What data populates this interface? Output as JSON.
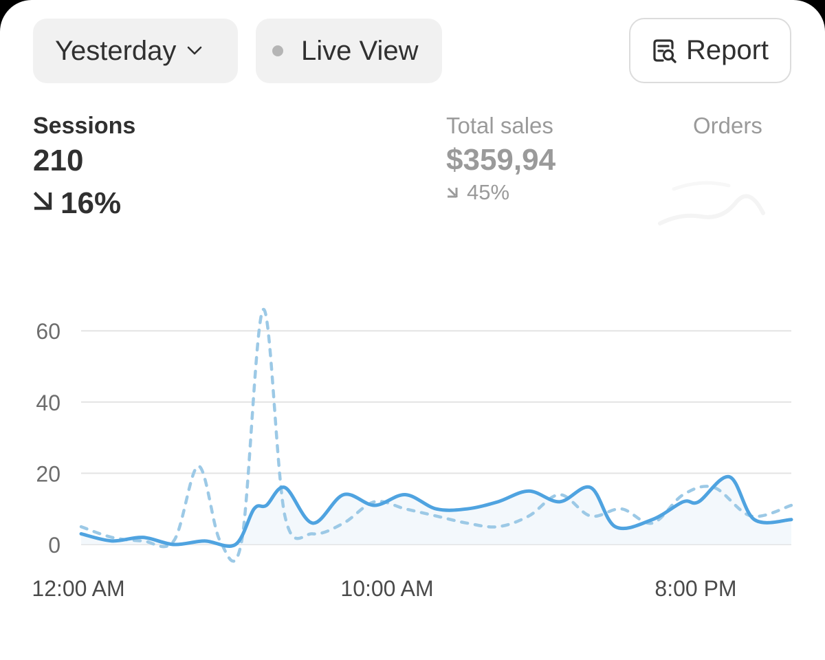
{
  "controls": {
    "date_range": "Yesterday",
    "live_view": "Live View",
    "report": "Report"
  },
  "metrics": {
    "sessions": {
      "label": "Sessions",
      "value": "210",
      "change": "16%"
    },
    "total_sales": {
      "label": "Total sales",
      "value": "$359,94",
      "change": "45%"
    },
    "orders": {
      "label": "Orders"
    }
  },
  "colors": {
    "current_series": "#4fa3e0",
    "comparison_series": "#9cc9e6",
    "gridline": "#e3e3e3"
  },
  "icons": [
    "chevron-down-icon",
    "live-dot-icon",
    "report-search-icon",
    "arrow-down-right-icon"
  ],
  "chart_data": {
    "type": "line",
    "x_tick_labels": [
      "12:00 AM",
      "10:00 AM",
      "8:00 PM"
    ],
    "y_tick_labels": [
      "0",
      "20",
      "40",
      "60"
    ],
    "ylim": [
      0,
      68
    ],
    "grid": true,
    "legend": "none",
    "series": [
      {
        "style": "solid",
        "points": [
          [
            0,
            3
          ],
          [
            1,
            1
          ],
          [
            2,
            2
          ],
          [
            3,
            0
          ],
          [
            4,
            1
          ],
          [
            5,
            0
          ],
          [
            5.6,
            10
          ],
          [
            6,
            11
          ],
          [
            6.6,
            16
          ],
          [
            7.5,
            6
          ],
          [
            8.5,
            14
          ],
          [
            9.5,
            11
          ],
          [
            10.5,
            14
          ],
          [
            11.5,
            10
          ],
          [
            12.5,
            10
          ],
          [
            13.5,
            12
          ],
          [
            14.5,
            15
          ],
          [
            15.5,
            12
          ],
          [
            16.5,
            16
          ],
          [
            17.3,
            5
          ],
          [
            18.5,
            7
          ],
          [
            19.5,
            12
          ],
          [
            20,
            12
          ],
          [
            21,
            19
          ],
          [
            21.8,
            7
          ],
          [
            23,
            7
          ]
        ]
      },
      {
        "style": "dashed",
        "points": [
          [
            0,
            5
          ],
          [
            1,
            2
          ],
          [
            2,
            1
          ],
          [
            3,
            1
          ],
          [
            3.8,
            22
          ],
          [
            4.5,
            1
          ],
          [
            5.2,
            1
          ],
          [
            5.9,
            66
          ],
          [
            6.6,
            8
          ],
          [
            7.5,
            3
          ],
          [
            8.5,
            6
          ],
          [
            9.5,
            12
          ],
          [
            10.5,
            10
          ],
          [
            11.5,
            8
          ],
          [
            12.5,
            6
          ],
          [
            13.5,
            5
          ],
          [
            14.5,
            8
          ],
          [
            15.5,
            14
          ],
          [
            16.5,
            8
          ],
          [
            17.5,
            10
          ],
          [
            18.5,
            6
          ],
          [
            19.5,
            14
          ],
          [
            20.5,
            16
          ],
          [
            21.7,
            8
          ],
          [
            23,
            11
          ]
        ]
      }
    ]
  }
}
